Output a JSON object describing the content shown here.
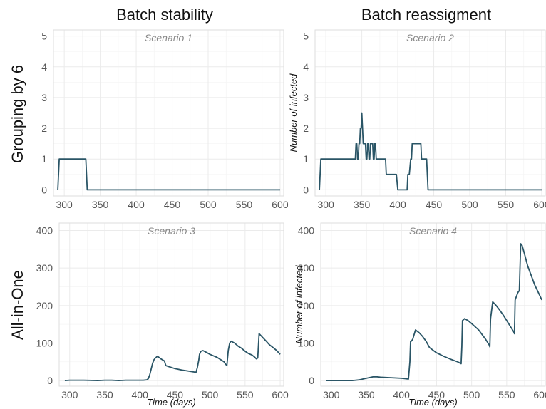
{
  "column_titles": [
    "Batch stability",
    "Batch reassigment"
  ],
  "row_titles": [
    "Grouping by 6",
    "All-in-One"
  ],
  "chart_data": [
    {
      "type": "line",
      "title": "Scenario 1",
      "xlabel": "",
      "ylabel": "",
      "xlim": [
        285,
        605
      ],
      "ylim": [
        -0.2,
        5.2
      ],
      "x_ticks": [
        300,
        350,
        400,
        450,
        500,
        550,
        600
      ],
      "y_ticks": [
        0,
        1,
        2,
        3,
        4,
        5
      ],
      "grid": true,
      "series": [
        {
          "x": [
            291,
            293,
            330,
            332,
            600
          ],
          "y": [
            0,
            1,
            1,
            0,
            0
          ]
        }
      ]
    },
    {
      "type": "line",
      "title": "Scenario 2",
      "xlabel": "",
      "ylabel": "Number of infected",
      "xlim": [
        285,
        605
      ],
      "ylim": [
        -0.2,
        5.2
      ],
      "x_ticks": [
        300,
        350,
        400,
        450,
        500,
        550,
        600
      ],
      "y_ticks": [
        0,
        1,
        2,
        3,
        4,
        5
      ],
      "grid": true,
      "series": [
        {
          "x": [
            291,
            293,
            341,
            342,
            343,
            344,
            345,
            346,
            347,
            348,
            349,
            350,
            351,
            352,
            353,
            355,
            356,
            357,
            358,
            359,
            360,
            361,
            362,
            363,
            365,
            366,
            367,
            368,
            369,
            370,
            371,
            373,
            374,
            375,
            376,
            377,
            380,
            383,
            384,
            398,
            400,
            413,
            414,
            416,
            418,
            419,
            420,
            421,
            432,
            433,
            440,
            442,
            600
          ],
          "y": [
            0,
            1,
            1,
            1.5,
            1.5,
            1,
            1,
            1.5,
            1.5,
            2,
            2,
            2.5,
            2,
            1.5,
            1.5,
            1.5,
            1,
            1,
            1.5,
            1.5,
            1,
            1,
            1.5,
            1.5,
            1.5,
            1,
            1,
            1.5,
            1.5,
            1,
            1,
            1,
            1,
            1,
            1,
            1,
            1,
            1,
            0.5,
            0.5,
            0,
            0,
            0.5,
            0.5,
            1,
            1,
            1.5,
            1.5,
            1.5,
            1,
            1,
            0,
            0
          ]
        }
      ]
    },
    {
      "type": "line",
      "title": "Scenario 3",
      "xlabel": "Time (days)",
      "ylabel": "",
      "xlim": [
        285,
        605
      ],
      "ylim": [
        -15,
        420
      ],
      "x_ticks": [
        300,
        350,
        400,
        450,
        500,
        550,
        600
      ],
      "y_ticks": [
        0,
        100,
        200,
        300,
        400
      ],
      "grid": true,
      "series": [
        {
          "x": [
            293,
            300,
            320,
            340,
            350,
            360,
            370,
            380,
            390,
            400,
            405,
            410,
            412,
            414,
            416,
            418,
            420,
            422,
            425,
            430,
            435,
            437,
            440,
            450,
            460,
            470,
            480,
            482,
            484,
            485,
            487,
            490,
            495,
            500,
            505,
            510,
            515,
            520,
            522,
            524,
            526,
            528,
            530,
            535,
            540,
            545,
            550,
            555,
            560,
            562,
            564,
            566,
            568,
            570,
            575,
            580,
            585,
            590,
            595,
            600
          ],
          "y": [
            0,
            1,
            1,
            0,
            1,
            1,
            0,
            1,
            1,
            1,
            1,
            2,
            5,
            15,
            30,
            45,
            55,
            60,
            65,
            58,
            52,
            40,
            38,
            32,
            28,
            25,
            22,
            35,
            55,
            70,
            78,
            80,
            75,
            70,
            66,
            62,
            56,
            50,
            44,
            40,
            80,
            100,
            105,
            100,
            92,
            86,
            78,
            72,
            68,
            65,
            62,
            58,
            60,
            125,
            115,
            105,
            95,
            88,
            80,
            70
          ]
        }
      ]
    },
    {
      "type": "line",
      "title": "Scenario 4",
      "xlabel": "Time (days)",
      "ylabel": "Number of infected",
      "xlim": [
        285,
        605
      ],
      "ylim": [
        -15,
        420
      ],
      "x_ticks": [
        300,
        350,
        400,
        450,
        500,
        550,
        600
      ],
      "y_ticks": [
        0,
        100,
        200,
        300,
        400
      ],
      "grid": true,
      "series": [
        {
          "x": [
            293,
            300,
            330,
            340,
            350,
            360,
            365,
            370,
            380,
            390,
            400,
            410,
            412,
            413,
            414,
            416,
            420,
            422,
            425,
            430,
            435,
            440,
            450,
            460,
            470,
            480,
            485,
            486,
            487,
            490,
            495,
            500,
            510,
            520,
            525,
            526,
            527,
            530,
            535,
            540,
            545,
            550,
            555,
            560,
            561,
            562,
            564,
            566,
            568,
            570,
            572,
            575,
            580,
            585,
            590,
            595,
            600
          ],
          "y": [
            0,
            0,
            0,
            2,
            6,
            10,
            10,
            9,
            8,
            7,
            6,
            4,
            50,
            105,
            105,
            110,
            135,
            132,
            128,
            118,
            105,
            88,
            74,
            65,
            57,
            50,
            45,
            90,
            160,
            165,
            160,
            152,
            135,
            110,
            95,
            90,
            165,
            210,
            200,
            188,
            175,
            160,
            145,
            130,
            125,
            215,
            225,
            235,
            240,
            365,
            360,
            340,
            305,
            280,
            255,
            235,
            215
          ]
        }
      ]
    }
  ]
}
